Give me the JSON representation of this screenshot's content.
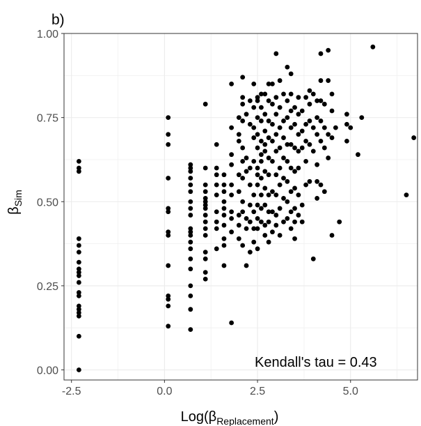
{
  "chart_data": {
    "type": "scatter",
    "panel_label": "b)",
    "xlabel_base": "Log(β",
    "xlabel_sub": "Replacement",
    "xlabel_end": ")",
    "ylabel_base": "β",
    "ylabel_sub": "Sim",
    "annotation": "Kendall's tau = 0.43",
    "xlim": [
      -2.7,
      6.8
    ],
    "ylim": [
      -0.03,
      1.0
    ],
    "x_ticks": [
      -2.5,
      0.0,
      2.5,
      5.0
    ],
    "x_tick_labels": [
      "-2.5",
      "0.0",
      "2.5",
      "5.0"
    ],
    "y_ticks": [
      0.0,
      0.25,
      0.5,
      0.75,
      1.0
    ],
    "y_tick_labels": [
      "0.00",
      "0.25",
      "0.50",
      "0.75",
      "1.00"
    ],
    "grid": true,
    "point_color": "#000000",
    "points": [
      [
        -2.3,
        0.62
      ],
      [
        -2.3,
        0.6
      ],
      [
        -2.3,
        0.59
      ],
      [
        -2.3,
        0.39
      ],
      [
        -2.3,
        0.37
      ],
      [
        -2.3,
        0.35
      ],
      [
        -2.3,
        0.32
      ],
      [
        -2.3,
        0.3
      ],
      [
        -2.3,
        0.29
      ],
      [
        -2.3,
        0.28
      ],
      [
        -2.3,
        0.26
      ],
      [
        -2.3,
        0.23
      ],
      [
        -2.3,
        0.22
      ],
      [
        -2.3,
        0.19
      ],
      [
        -2.3,
        0.18
      ],
      [
        -2.3,
        0.17
      ],
      [
        -2.3,
        0.16
      ],
      [
        -2.3,
        0.1
      ],
      [
        -2.3,
        0.0
      ],
      [
        0.1,
        0.75
      ],
      [
        0.1,
        0.7
      ],
      [
        0.1,
        0.67
      ],
      [
        0.1,
        0.57
      ],
      [
        0.1,
        0.48
      ],
      [
        0.1,
        0.47
      ],
      [
        0.1,
        0.41
      ],
      [
        0.1,
        0.4
      ],
      [
        0.1,
        0.31
      ],
      [
        0.1,
        0.22
      ],
      [
        0.1,
        0.21
      ],
      [
        0.1,
        0.19
      ],
      [
        0.1,
        0.13
      ],
      [
        0.7,
        0.61
      ],
      [
        0.7,
        0.6
      ],
      [
        0.7,
        0.59
      ],
      [
        0.7,
        0.57
      ],
      [
        0.7,
        0.55
      ],
      [
        0.7,
        0.53
      ],
      [
        0.7,
        0.5
      ],
      [
        0.7,
        0.48
      ],
      [
        0.7,
        0.46
      ],
      [
        0.7,
        0.42
      ],
      [
        0.7,
        0.41
      ],
      [
        0.7,
        0.4
      ],
      [
        0.7,
        0.38
      ],
      [
        0.7,
        0.36
      ],
      [
        0.7,
        0.33
      ],
      [
        0.7,
        0.3
      ],
      [
        0.7,
        0.25
      ],
      [
        0.7,
        0.22
      ],
      [
        0.7,
        0.18
      ],
      [
        0.7,
        0.12
      ],
      [
        1.1,
        0.79
      ],
      [
        1.1,
        0.6
      ],
      [
        1.1,
        0.55
      ],
      [
        1.1,
        0.53
      ],
      [
        1.1,
        0.51
      ],
      [
        1.1,
        0.5
      ],
      [
        1.1,
        0.49
      ],
      [
        1.1,
        0.48
      ],
      [
        1.1,
        0.46
      ],
      [
        1.1,
        0.44
      ],
      [
        1.1,
        0.42
      ],
      [
        1.1,
        0.4
      ],
      [
        1.1,
        0.35
      ],
      [
        1.1,
        0.33
      ],
      [
        1.1,
        0.29
      ],
      [
        1.1,
        0.27
      ],
      [
        1.4,
        0.67
      ],
      [
        1.4,
        0.6
      ],
      [
        1.4,
        0.58
      ],
      [
        1.4,
        0.55
      ],
      [
        1.4,
        0.52
      ],
      [
        1.4,
        0.47
      ],
      [
        1.4,
        0.44
      ],
      [
        1.4,
        0.42
      ],
      [
        1.4,
        0.36
      ],
      [
        1.6,
        0.58
      ],
      [
        1.6,
        0.55
      ],
      [
        1.6,
        0.53
      ],
      [
        1.6,
        0.5
      ],
      [
        1.6,
        0.48
      ],
      [
        1.6,
        0.46
      ],
      [
        1.6,
        0.43
      ],
      [
        1.6,
        0.39
      ],
      [
        1.6,
        0.37
      ],
      [
        1.6,
        0.31
      ],
      [
        1.8,
        0.85
      ],
      [
        1.8,
        0.72
      ],
      [
        1.8,
        0.64
      ],
      [
        1.8,
        0.61
      ],
      [
        1.8,
        0.55
      ],
      [
        1.8,
        0.52
      ],
      [
        1.8,
        0.47
      ],
      [
        1.8,
        0.45
      ],
      [
        1.8,
        0.41
      ],
      [
        1.8,
        0.14
      ],
      [
        2.0,
        0.75
      ],
      [
        2.0,
        0.7
      ],
      [
        2.0,
        0.68
      ],
      [
        2.0,
        0.58
      ],
      [
        2.0,
        0.53
      ],
      [
        2.0,
        0.46
      ],
      [
        2.0,
        0.43
      ],
      [
        2.0,
        0.39
      ],
      [
        2.1,
        0.87
      ],
      [
        2.1,
        0.81
      ],
      [
        2.1,
        0.79
      ],
      [
        2.1,
        0.74
      ],
      [
        2.1,
        0.66
      ],
      [
        2.1,
        0.62
      ],
      [
        2.1,
        0.57
      ],
      [
        2.1,
        0.5
      ],
      [
        2.1,
        0.47
      ],
      [
        2.1,
        0.37
      ],
      [
        2.2,
        0.76
      ],
      [
        2.2,
        0.63
      ],
      [
        2.2,
        0.59
      ],
      [
        2.2,
        0.45
      ],
      [
        2.2,
        0.42
      ],
      [
        2.2,
        0.31
      ],
      [
        2.3,
        0.8
      ],
      [
        2.3,
        0.73
      ],
      [
        2.3,
        0.6
      ],
      [
        2.3,
        0.55
      ],
      [
        2.3,
        0.49
      ],
      [
        2.3,
        0.44
      ],
      [
        2.3,
        0.35
      ],
      [
        2.4,
        0.85
      ],
      [
        2.4,
        0.78
      ],
      [
        2.4,
        0.72
      ],
      [
        2.4,
        0.69
      ],
      [
        2.4,
        0.62
      ],
      [
        2.4,
        0.52
      ],
      [
        2.4,
        0.47
      ],
      [
        2.4,
        0.42
      ],
      [
        2.4,
        0.38
      ],
      [
        2.5,
        0.81
      ],
      [
        2.5,
        0.8
      ],
      [
        2.5,
        0.75
      ],
      [
        2.5,
        0.7
      ],
      [
        2.5,
        0.66
      ],
      [
        2.5,
        0.6
      ],
      [
        2.5,
        0.58
      ],
      [
        2.5,
        0.55
      ],
      [
        2.5,
        0.49
      ],
      [
        2.5,
        0.45
      ],
      [
        2.5,
        0.42
      ],
      [
        2.5,
        0.36
      ],
      [
        2.6,
        0.82
      ],
      [
        2.6,
        0.78
      ],
      [
        2.6,
        0.74
      ],
      [
        2.6,
        0.68
      ],
      [
        2.6,
        0.64
      ],
      [
        2.6,
        0.62
      ],
      [
        2.6,
        0.57
      ],
      [
        2.6,
        0.52
      ],
      [
        2.6,
        0.48
      ],
      [
        2.6,
        0.44
      ],
      [
        2.7,
        0.82
      ],
      [
        2.7,
        0.76
      ],
      [
        2.7,
        0.71
      ],
      [
        2.7,
        0.67
      ],
      [
        2.7,
        0.65
      ],
      [
        2.7,
        0.59
      ],
      [
        2.7,
        0.54
      ],
      [
        2.7,
        0.49
      ],
      [
        2.7,
        0.43
      ],
      [
        2.7,
        0.4
      ],
      [
        2.8,
        0.85
      ],
      [
        2.8,
        0.8
      ],
      [
        2.8,
        0.74
      ],
      [
        2.8,
        0.69
      ],
      [
        2.8,
        0.63
      ],
      [
        2.8,
        0.58
      ],
      [
        2.8,
        0.52
      ],
      [
        2.8,
        0.47
      ],
      [
        2.8,
        0.44
      ],
      [
        2.8,
        0.38
      ],
      [
        2.9,
        0.85
      ],
      [
        2.9,
        0.79
      ],
      [
        2.9,
        0.73
      ],
      [
        2.9,
        0.68
      ],
      [
        2.9,
        0.62
      ],
      [
        2.9,
        0.53
      ],
      [
        2.9,
        0.47
      ],
      [
        2.9,
        0.41
      ],
      [
        3.0,
        0.94
      ],
      [
        3.0,
        0.81
      ],
      [
        3.0,
        0.76
      ],
      [
        3.0,
        0.7
      ],
      [
        3.0,
        0.65
      ],
      [
        3.0,
        0.58
      ],
      [
        3.0,
        0.52
      ],
      [
        3.0,
        0.46
      ],
      [
        3.0,
        0.43
      ],
      [
        3.1,
        0.86
      ],
      [
        3.1,
        0.78
      ],
      [
        3.1,
        0.72
      ],
      [
        3.1,
        0.66
      ],
      [
        3.1,
        0.6
      ],
      [
        3.1,
        0.55
      ],
      [
        3.1,
        0.48
      ],
      [
        3.1,
        0.4
      ],
      [
        3.2,
        0.82
      ],
      [
        3.2,
        0.74
      ],
      [
        3.2,
        0.69
      ],
      [
        3.2,
        0.63
      ],
      [
        3.2,
        0.57
      ],
      [
        3.2,
        0.51
      ],
      [
        3.2,
        0.44
      ],
      [
        3.3,
        0.9
      ],
      [
        3.3,
        0.8
      ],
      [
        3.3,
        0.75
      ],
      [
        3.3,
        0.67
      ],
      [
        3.3,
        0.62
      ],
      [
        3.3,
        0.56
      ],
      [
        3.3,
        0.5
      ],
      [
        3.3,
        0.45
      ],
      [
        3.4,
        0.88
      ],
      [
        3.4,
        0.82
      ],
      [
        3.4,
        0.77
      ],
      [
        3.4,
        0.72
      ],
      [
        3.4,
        0.67
      ],
      [
        3.4,
        0.6
      ],
      [
        3.4,
        0.53
      ],
      [
        3.4,
        0.47
      ],
      [
        3.4,
        0.42
      ],
      [
        3.5,
        0.78
      ],
      [
        3.5,
        0.73
      ],
      [
        3.5,
        0.66
      ],
      [
        3.5,
        0.59
      ],
      [
        3.5,
        0.54
      ],
      [
        3.5,
        0.48
      ],
      [
        3.5,
        0.44
      ],
      [
        3.5,
        0.39
      ],
      [
        3.6,
        0.81
      ],
      [
        3.6,
        0.76
      ],
      [
        3.6,
        0.7
      ],
      [
        3.6,
        0.65
      ],
      [
        3.6,
        0.6
      ],
      [
        3.6,
        0.52
      ],
      [
        3.6,
        0.46
      ],
      [
        3.7,
        0.77
      ],
      [
        3.7,
        0.71
      ],
      [
        3.7,
        0.66
      ],
      [
        3.7,
        0.49
      ],
      [
        3.7,
        0.44
      ],
      [
        3.8,
        0.81
      ],
      [
        3.8,
        0.73
      ],
      [
        3.8,
        0.68
      ],
      [
        3.8,
        0.62
      ],
      [
        3.8,
        0.55
      ],
      [
        3.9,
        0.83
      ],
      [
        3.9,
        0.79
      ],
      [
        3.9,
        0.74
      ],
      [
        3.9,
        0.67
      ],
      [
        3.9,
        0.56
      ],
      [
        4.0,
        0.82
      ],
      [
        4.0,
        0.72
      ],
      [
        4.0,
        0.65
      ],
      [
        4.0,
        0.33
      ],
      [
        4.1,
        0.8
      ],
      [
        4.1,
        0.75
      ],
      [
        4.1,
        0.7
      ],
      [
        4.1,
        0.61
      ],
      [
        4.1,
        0.56
      ],
      [
        4.1,
        0.51
      ],
      [
        4.2,
        0.94
      ],
      [
        4.2,
        0.86
      ],
      [
        4.2,
        0.8
      ],
      [
        4.2,
        0.74
      ],
      [
        4.2,
        0.68
      ],
      [
        4.2,
        0.55
      ],
      [
        4.3,
        0.79
      ],
      [
        4.3,
        0.72
      ],
      [
        4.3,
        0.66
      ],
      [
        4.3,
        0.53
      ],
      [
        4.4,
        0.95
      ],
      [
        4.4,
        0.86
      ],
      [
        4.4,
        0.7
      ],
      [
        4.4,
        0.63
      ],
      [
        4.5,
        0.82
      ],
      [
        4.5,
        0.77
      ],
      [
        4.5,
        0.69
      ],
      [
        4.5,
        0.4
      ],
      [
        4.6,
        0.72
      ],
      [
        4.7,
        0.44
      ],
      [
        4.9,
        0.76
      ],
      [
        4.9,
        0.73
      ],
      [
        4.9,
        0.68
      ],
      [
        5.0,
        0.72
      ],
      [
        5.2,
        0.64
      ],
      [
        5.3,
        0.75
      ],
      [
        5.6,
        0.96
      ],
      [
        6.5,
        0.52
      ],
      [
        6.7,
        0.69
      ]
    ]
  }
}
